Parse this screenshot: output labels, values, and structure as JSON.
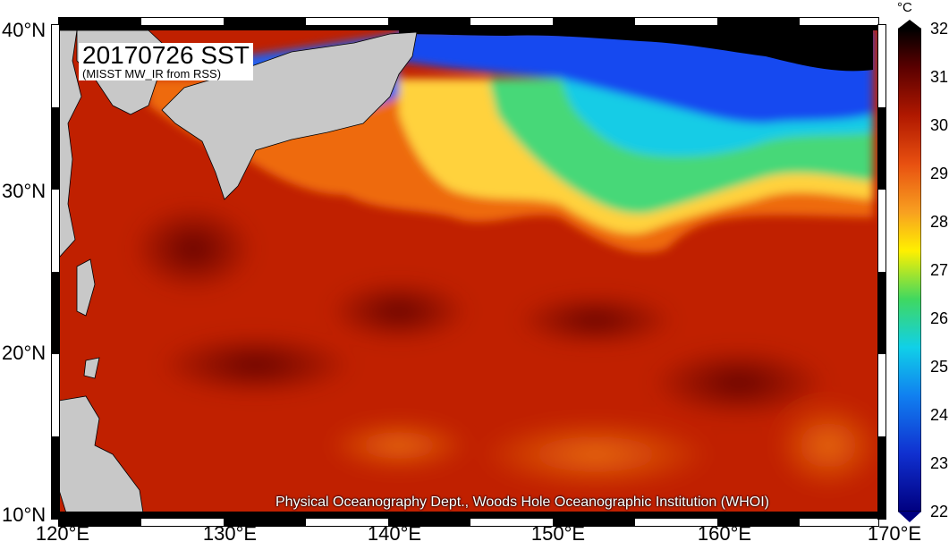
{
  "title": "20170726 SST",
  "subtitle": "(MISST MW_IR from RSS)",
  "credit": "Physical Oceanography Dept., Woods Hole Oceanographic Institution (WHOI)",
  "colorbar": {
    "unit": "°C",
    "ticks": [
      "32",
      "31",
      "30",
      "29",
      "28",
      "27",
      "26",
      "25",
      "24",
      "23",
      "22"
    ],
    "min": 22,
    "max": 32
  },
  "lat_labels": [
    "40°N",
    "30°N",
    "20°N",
    "10°N"
  ],
  "lon_labels": [
    "120°E",
    "130°E",
    "140°E",
    "150°E",
    "160°E",
    "170°E"
  ],
  "colors": {
    "land": "#c8c8c8",
    "warm": "#b01800",
    "hot": "#6a0a00",
    "yellow": "#ffd23c",
    "green": "#3cd67a",
    "cyan": "#16d0e8",
    "blue": "#1840f0",
    "no_data": "#000000"
  }
}
